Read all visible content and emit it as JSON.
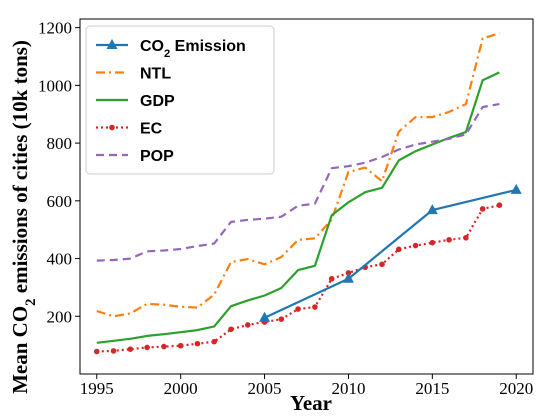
{
  "chart_data": {
    "type": "line",
    "title": "",
    "xlabel": "Year",
    "ylabel": "Mean CO₂ emissions of cities (10k tons)",
    "ylabel_parts": [
      "Mean CO",
      "2",
      " emissions of cities (10k tons)"
    ],
    "xlim": [
      1994,
      2021
    ],
    "ylim": [
      0,
      1230
    ],
    "x_ticks": [
      1995,
      2000,
      2005,
      2010,
      2015,
      2020
    ],
    "y_ticks": [
      200,
      400,
      600,
      800,
      1000,
      1200
    ],
    "grid": false,
    "legend_position": "top-left",
    "series": [
      {
        "name": "CO₂ Emission",
        "name_parts": [
          "CO",
          "2",
          " Emission"
        ],
        "color": "#1f77b4",
        "line_style": "solid",
        "marker": "triangle",
        "x": [
          2005,
          2010,
          2015,
          2020
        ],
        "values": [
          195,
          330,
          568,
          638
        ]
      },
      {
        "name": "NTL",
        "color": "#ff7f0e",
        "line_style": "dashdot",
        "marker": "none",
        "x": [
          1995,
          1996,
          1997,
          1998,
          1999,
          2000,
          2001,
          2002,
          2003,
          2004,
          2005,
          2006,
          2007,
          2008,
          2009,
          2010,
          2011,
          2012,
          2013,
          2014,
          2015,
          2016,
          2017,
          2018,
          2019
        ],
        "values": [
          218,
          200,
          210,
          243,
          240,
          233,
          230,
          275,
          388,
          398,
          380,
          405,
          465,
          470,
          535,
          700,
          715,
          668,
          840,
          890,
          890,
          908,
          935,
          1163,
          1180
        ]
      },
      {
        "name": "GDP",
        "color": "#2ca02c",
        "line_style": "solid",
        "marker": "none",
        "x": [
          1995,
          1996,
          1997,
          1998,
          1999,
          2000,
          2001,
          2002,
          2003,
          2004,
          2005,
          2006,
          2007,
          2008,
          2009,
          2010,
          2011,
          2012,
          2013,
          2014,
          2015,
          2016,
          2017,
          2018,
          2019
        ],
        "values": [
          108,
          115,
          122,
          132,
          138,
          145,
          152,
          165,
          235,
          255,
          272,
          298,
          360,
          375,
          550,
          595,
          630,
          645,
          740,
          772,
          795,
          818,
          838,
          1018,
          1045
        ]
      },
      {
        "name": "EC",
        "color": "#d62728",
        "line_style": "dotted",
        "marker": "dot",
        "x": [
          1995,
          1996,
          1997,
          1998,
          1999,
          2000,
          2001,
          2002,
          2003,
          2004,
          2005,
          2006,
          2007,
          2008,
          2009,
          2010,
          2011,
          2012,
          2013,
          2014,
          2015,
          2016,
          2017,
          2018,
          2019
        ],
        "values": [
          78,
          80,
          86,
          92,
          95,
          98,
          105,
          112,
          155,
          170,
          180,
          190,
          225,
          232,
          330,
          350,
          370,
          380,
          432,
          445,
          455,
          465,
          472,
          572,
          585
        ]
      },
      {
        "name": "POP",
        "color": "#9467bd",
        "line_style": "dashed",
        "marker": "none",
        "x": [
          1995,
          1996,
          1997,
          1998,
          1999,
          2000,
          2001,
          2002,
          2003,
          2004,
          2005,
          2006,
          2007,
          2008,
          2009,
          2010,
          2011,
          2012,
          2013,
          2014,
          2015,
          2016,
          2017,
          2018,
          2019
        ],
        "values": [
          393,
          395,
          400,
          425,
          428,
          433,
          443,
          452,
          527,
          534,
          538,
          545,
          583,
          590,
          713,
          720,
          732,
          752,
          778,
          795,
          805,
          815,
          830,
          925,
          935
        ]
      }
    ]
  }
}
